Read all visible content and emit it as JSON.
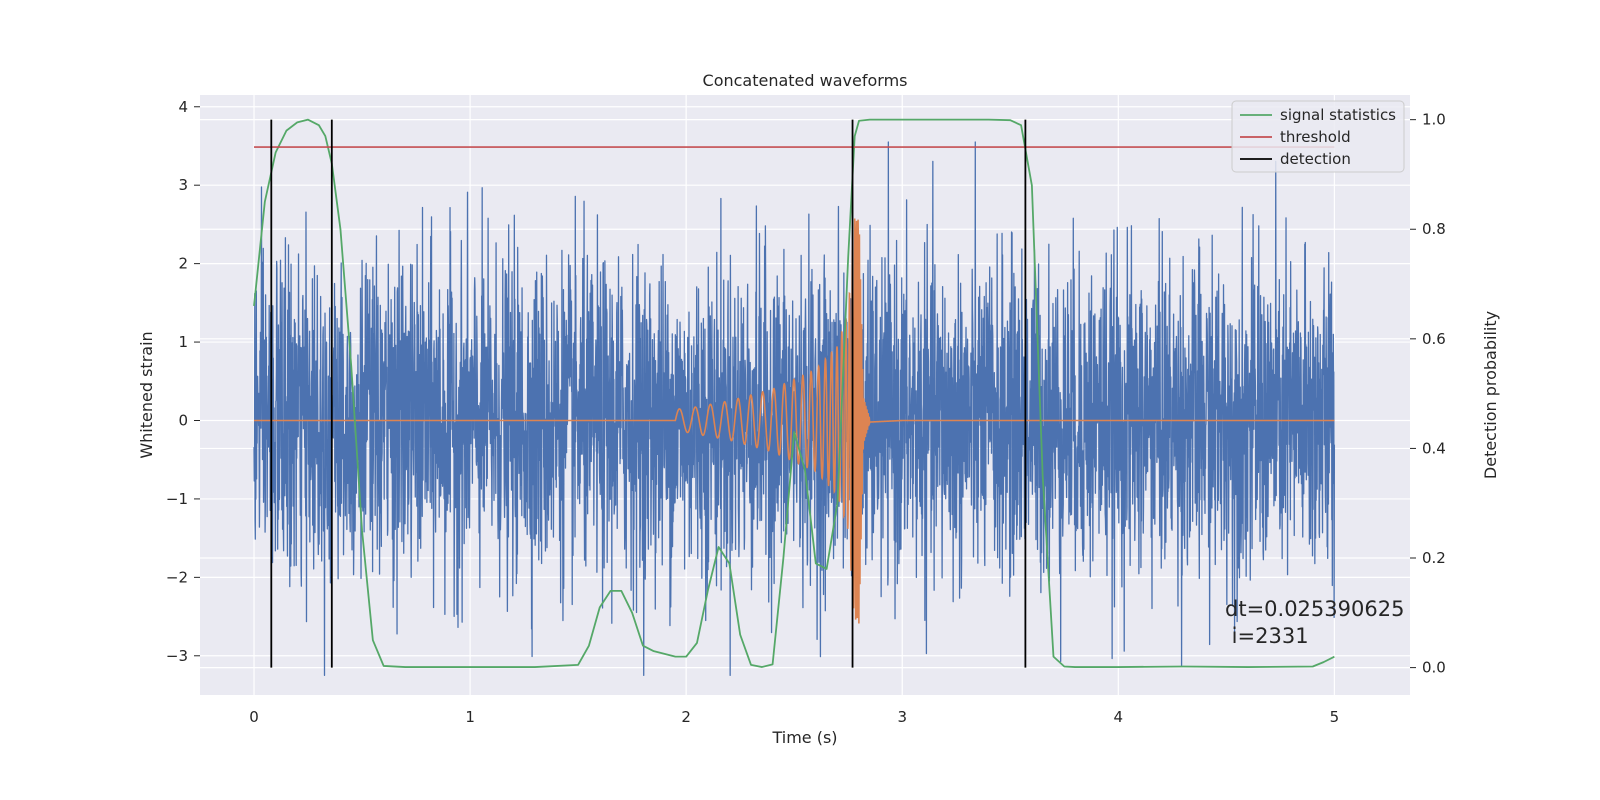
{
  "chart_data": {
    "type": "line",
    "title": "Concatenated waveforms",
    "xlabel": "Time (s)",
    "ylabel": "Whitened strain",
    "y2label": "Detection probability",
    "xlim": [
      -0.25,
      5.35
    ],
    "ylim": [
      -3.5,
      4.15
    ],
    "y2lim": [
      -0.05,
      1.045
    ],
    "x_ticks": [
      0,
      1,
      2,
      3,
      4,
      5
    ],
    "y_ticks": [
      -3,
      -2,
      -1,
      0,
      1,
      2,
      3,
      4
    ],
    "y2_ticks": [
      0.0,
      0.2,
      0.4,
      0.6,
      0.8,
      1.0
    ],
    "y2_tick_labels": [
      "0.0",
      "0.2",
      "0.4",
      "0.6",
      "0.8",
      "1.0"
    ],
    "grid": true,
    "legend_position": "top-right",
    "colors": {
      "background": "#eaeaf2",
      "grid": "#ffffff",
      "noise": "#4c72b0",
      "waveform": "#dd8452",
      "signal_statistics": "#55a868",
      "threshold": "#c44e52",
      "detection": "#000000"
    },
    "series": [
      {
        "name": "",
        "role": "whitened strain noise",
        "axis": "left",
        "x_range": [
          0,
          5
        ],
        "typical_amplitude": 1.0,
        "peak_range": [
          -3.25,
          3.55
        ]
      },
      {
        "name": "",
        "role": "injected waveform",
        "axis": "left",
        "x": [
          0,
          2.0,
          2.2,
          2.4,
          2.6,
          2.7,
          2.75,
          2.78,
          2.8,
          2.82,
          2.85,
          3.0,
          5.0
        ],
        "envelope": [
          0,
          0.15,
          0.25,
          0.4,
          0.65,
          0.95,
          1.4,
          2.6,
          2.6,
          0.3,
          0.02,
          0,
          0
        ]
      },
      {
        "name": "signal statistics",
        "axis": "right",
        "x": [
          0,
          0.05,
          0.1,
          0.15,
          0.2,
          0.25,
          0.3,
          0.33,
          0.36,
          0.4,
          0.45,
          0.5,
          0.55,
          0.6,
          0.7,
          1.0,
          1.3,
          1.5,
          1.55,
          1.6,
          1.65,
          1.7,
          1.75,
          1.8,
          1.85,
          1.9,
          1.95,
          2.0,
          2.05,
          2.1,
          2.15,
          2.2,
          2.25,
          2.3,
          2.35,
          2.4,
          2.45,
          2.5,
          2.55,
          2.6,
          2.65,
          2.7,
          2.75,
          2.78,
          2.8,
          2.85,
          2.9,
          3.0,
          3.2,
          3.4,
          3.5,
          3.55,
          3.6,
          3.65,
          3.7,
          3.75,
          3.8,
          4.0,
          4.3,
          4.6,
          4.9,
          4.95,
          5.0
        ],
        "values": [
          0.66,
          0.85,
          0.94,
          0.98,
          0.995,
          1.0,
          0.99,
          0.97,
          0.92,
          0.8,
          0.55,
          0.25,
          0.05,
          0.003,
          0.001,
          0.001,
          0.001,
          0.005,
          0.04,
          0.11,
          0.14,
          0.14,
          0.1,
          0.04,
          0.03,
          0.025,
          0.02,
          0.02,
          0.045,
          0.14,
          0.22,
          0.19,
          0.06,
          0.005,
          0.001,
          0.006,
          0.2,
          0.43,
          0.36,
          0.19,
          0.18,
          0.3,
          0.75,
          0.97,
          0.998,
          1.0,
          1.0,
          1.0,
          1.0,
          1.0,
          0.999,
          0.99,
          0.88,
          0.35,
          0.02,
          0.002,
          0.001,
          0.001,
          0.002,
          0.001,
          0.002,
          0.01,
          0.02
        ]
      },
      {
        "name": "threshold",
        "axis": "right",
        "x": [
          0,
          5
        ],
        "values": [
          0.95,
          0.95
        ]
      }
    ],
    "detection_lines": {
      "name": "detection",
      "x": [
        0.08,
        0.36,
        2.77,
        3.57
      ]
    },
    "legend": [
      "signal statistics",
      "threshold",
      "detection"
    ],
    "annotations": [
      "dt=0.025390625",
      " i=2331"
    ]
  }
}
